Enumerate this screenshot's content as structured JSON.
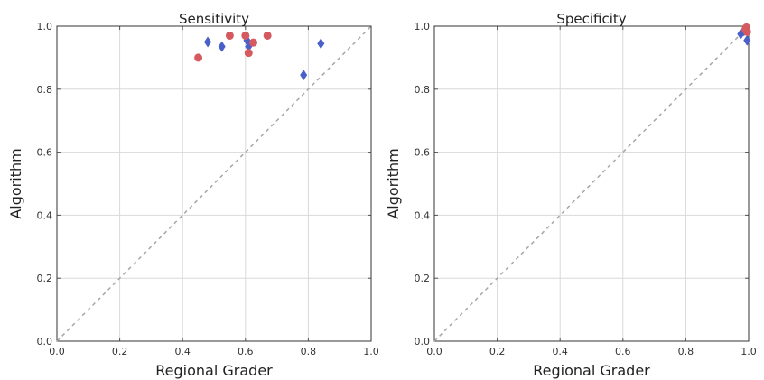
{
  "chart_data": [
    {
      "type": "scatter",
      "title": "Sensitivity",
      "xlabel": "Regional Grader",
      "ylabel": "Algorithm",
      "xlim": [
        0,
        1
      ],
      "ylim": [
        0,
        1
      ],
      "x_ticks": [
        "0.0",
        "0.2",
        "0.4",
        "0.6",
        "0.8",
        "1.0"
      ],
      "y_ticks": [
        "0.0",
        "0.2",
        "0.4",
        "0.6",
        "0.8",
        "1.0"
      ],
      "grid": true,
      "reference_line": "y = x",
      "series": [
        {
          "marker": "diamond",
          "color": "#4a5fc9",
          "points": [
            {
              "x": 0.48,
              "y": 0.95
            },
            {
              "x": 0.525,
              "y": 0.935
            },
            {
              "x": 0.605,
              "y": 0.955
            },
            {
              "x": 0.61,
              "y": 0.935
            },
            {
              "x": 0.785,
              "y": 0.845
            },
            {
              "x": 0.84,
              "y": 0.945
            }
          ]
        },
        {
          "marker": "circle",
          "color": "#d45a5f",
          "points": [
            {
              "x": 0.45,
              "y": 0.9
            },
            {
              "x": 0.55,
              "y": 0.97
            },
            {
              "x": 0.6,
              "y": 0.97
            },
            {
              "x": 0.61,
              "y": 0.915
            },
            {
              "x": 0.625,
              "y": 0.948
            },
            {
              "x": 0.67,
              "y": 0.97
            }
          ]
        }
      ]
    },
    {
      "type": "scatter",
      "title": "Specificity",
      "xlabel": "Regional Grader",
      "ylabel": "Algorithm",
      "xlim": [
        0,
        1
      ],
      "ylim": [
        0,
        1
      ],
      "x_ticks": [
        "0.0",
        "0.2",
        "0.4",
        "0.6",
        "0.8",
        "1.0"
      ],
      "y_ticks": [
        "0.0",
        "0.2",
        "0.4",
        "0.6",
        "0.8",
        "1.0"
      ],
      "grid": true,
      "reference_line": "y = x",
      "series": [
        {
          "marker": "diamond",
          "color": "#4a5fc9",
          "points": [
            {
              "x": 0.975,
              "y": 0.975
            },
            {
              "x": 0.985,
              "y": 0.985
            },
            {
              "x": 0.995,
              "y": 0.955
            }
          ]
        },
        {
          "marker": "circle",
          "color": "#d45a5f",
          "points": [
            {
              "x": 0.99,
              "y": 0.99
            },
            {
              "x": 0.995,
              "y": 0.982
            },
            {
              "x": 0.993,
              "y": 0.996
            }
          ]
        }
      ]
    }
  ]
}
